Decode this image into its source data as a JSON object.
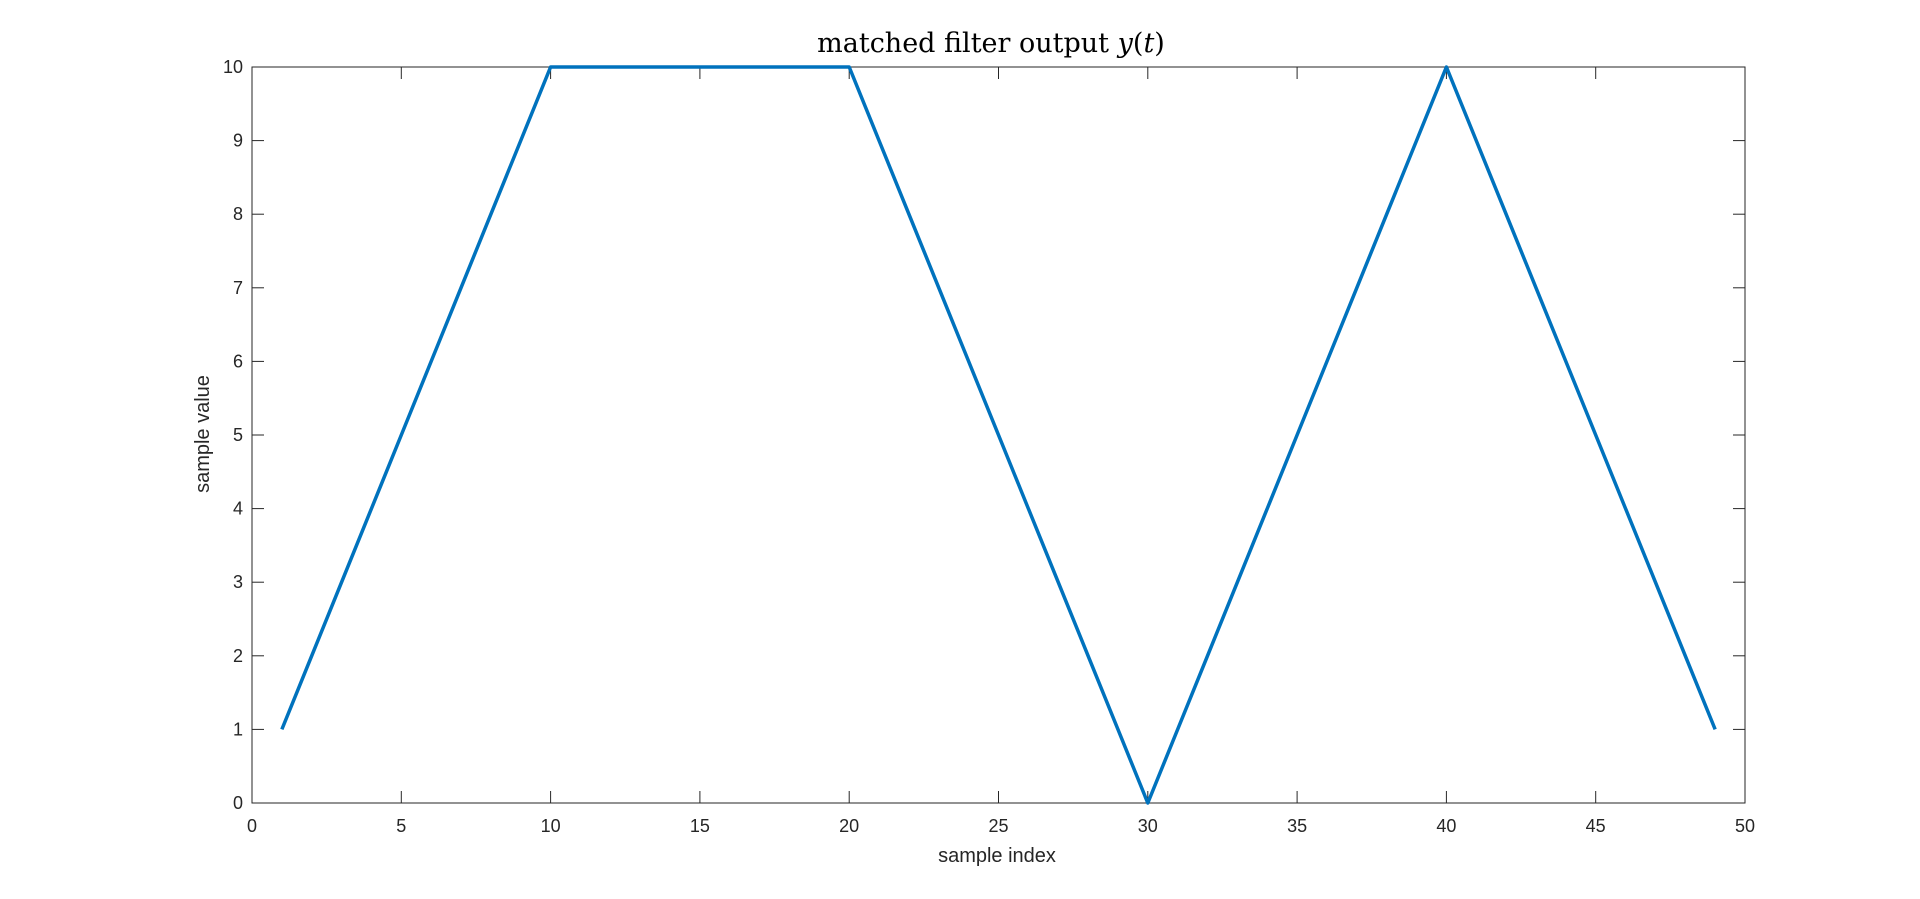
{
  "chart_data": {
    "type": "line",
    "title": {
      "text": "matched filter output",
      "math_var": "y",
      "math_arg": "(",
      "math_arg_var": "t",
      "math_close": ")"
    },
    "xlabel": "sample index",
    "ylabel": "sample value",
    "xlim": [
      0,
      50
    ],
    "ylim": [
      0,
      10
    ],
    "xticks": [
      0,
      5,
      10,
      15,
      20,
      25,
      30,
      35,
      40,
      45,
      50
    ],
    "yticks": [
      0,
      1,
      2,
      3,
      4,
      5,
      6,
      7,
      8,
      9,
      10
    ],
    "grid": false,
    "line_color": "#0072BD",
    "axis_color": "#262626",
    "series": [
      {
        "x": [
          1,
          2,
          3,
          4,
          5,
          6,
          7,
          8,
          9,
          10,
          11,
          12,
          13,
          14,
          15,
          16,
          17,
          18,
          19,
          20,
          21,
          22,
          23,
          24,
          25,
          26,
          27,
          28,
          29,
          30,
          31,
          32,
          33,
          34,
          35,
          36,
          37,
          38,
          39,
          40,
          41,
          42,
          43,
          44,
          45,
          46,
          47,
          48,
          49
        ],
        "y": [
          1,
          2,
          3,
          4,
          5,
          6,
          7,
          8,
          9,
          10,
          10,
          10,
          10,
          10,
          10,
          10,
          10,
          10,
          10,
          10,
          9,
          8,
          7,
          6,
          5,
          4,
          3,
          2,
          1,
          0,
          1,
          2,
          3,
          4,
          5,
          6,
          7,
          8,
          9,
          10,
          9,
          8,
          7,
          6,
          5,
          4,
          3,
          2,
          1
        ]
      }
    ]
  }
}
